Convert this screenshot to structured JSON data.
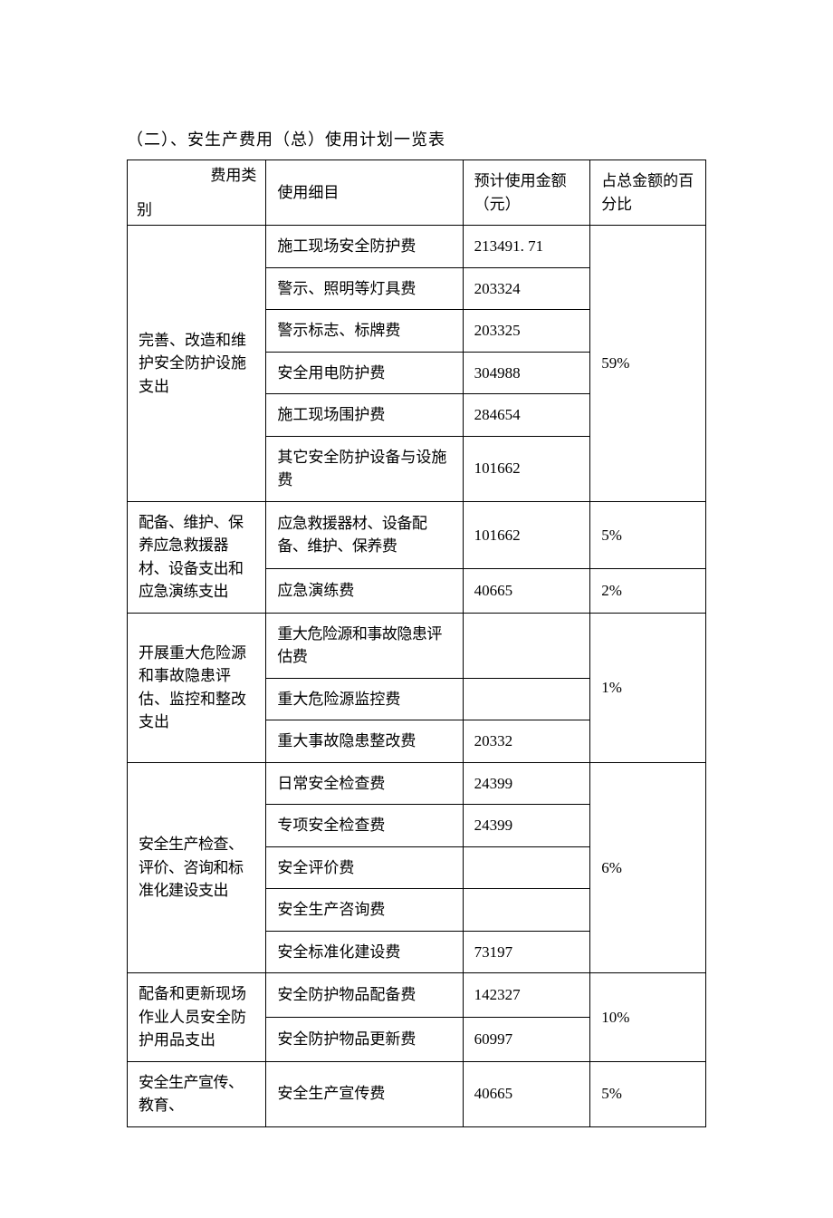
{
  "title": "（二）、安生产费用（总）使用计划一览表",
  "headers": {
    "diag_top": "费用类",
    "diag_bottom": "别",
    "col2": "使用细目",
    "col3": "预计使用金额（元）",
    "col4": "占总金额的百分比"
  },
  "groups": [
    {
      "category": "完善、改造和维护安全防护设施支出",
      "percent": "59%",
      "rows": [
        {
          "item": "施工现场安全防护费",
          "amount": "213491. 71"
        },
        {
          "item": "警示、照明等灯具费",
          "amount": "203324"
        },
        {
          "item": "警示标志、标牌费",
          "amount": "203325"
        },
        {
          "item": "安全用电防护费",
          "amount": "304988"
        },
        {
          "item": "施工现场围护费",
          "amount": "284654"
        },
        {
          "item": "其它安全防护设备与设施费",
          "amount": "101662"
        }
      ]
    },
    {
      "category": "配备、维护、保养应急救援器材、设备支出和应急演练支出",
      "rows_split": [
        {
          "item": "应急救援器材、设备配备、维护、保养费",
          "amount": "101662",
          "percent": "5%"
        },
        {
          "item": "应急演练费",
          "amount": "40665",
          "percent": "2%"
        }
      ]
    },
    {
      "category": "开展重大危险源和事故隐患评估、监控和整改支出",
      "percent": "1%",
      "rows": [
        {
          "item": "重大危险源和事故隐患评估费",
          "amount": ""
        },
        {
          "item": "重大危险源监控费",
          "amount": ""
        },
        {
          "item": "重大事故隐患整改费",
          "amount": "20332"
        }
      ]
    },
    {
      "category": "安全生产检查、评价、咨询和标准化建设支出",
      "percent": "6%",
      "rows": [
        {
          "item": "日常安全检查费",
          "amount": "24399"
        },
        {
          "item": "专项安全检查费",
          "amount": "24399"
        },
        {
          "item": "安全评价费",
          "amount": ""
        },
        {
          "item": "安全生产咨询费",
          "amount": ""
        },
        {
          "item": "安全标准化建设费",
          "amount": "73197"
        }
      ]
    },
    {
      "category": "配备和更新现场作业人员安全防护用品支出",
      "percent": "10%",
      "rows": [
        {
          "item": "安全防护物品配备费",
          "amount": "142327"
        },
        {
          "item": "安全防护物品更新费",
          "amount": "60997"
        }
      ]
    },
    {
      "category": "安全生产宣传、教育、",
      "percent": "5%",
      "rows": [
        {
          "item": "安全生产宣传费",
          "amount": "40665"
        }
      ]
    }
  ]
}
